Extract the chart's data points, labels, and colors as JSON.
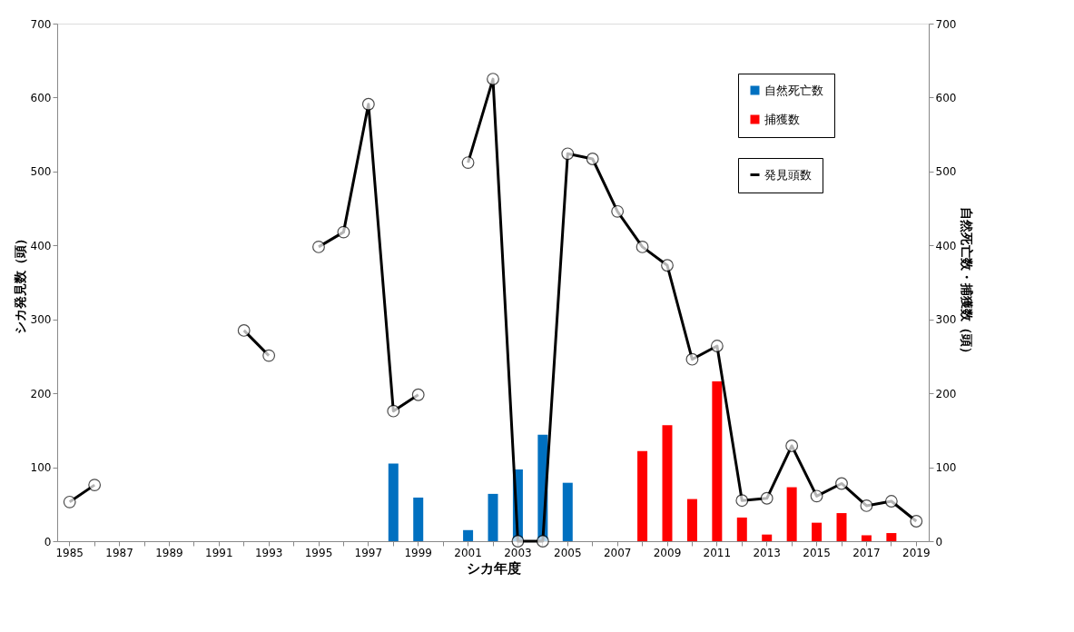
{
  "chart_data": {
    "type": "bar",
    "xlabel": "シカ年度",
    "ylabel": "シカ発見数（頭）",
    "y2label": "自然死亡数・捕獲数（頭）",
    "categories": [
      "1985",
      null,
      "1987",
      null,
      "1989",
      null,
      "1991",
      null,
      "1993",
      null,
      "1995",
      null,
      "1997",
      null,
      "1999",
      null,
      "2001",
      null,
      "2003",
      null,
      "2005",
      null,
      "2007",
      null,
      "2009",
      null,
      "2011",
      null,
      "2013",
      null,
      "2015",
      null,
      "2017",
      null,
      "2019"
    ],
    "series": [
      {
        "name": "自然死亡数",
        "axis": "y2",
        "color": "#0070c0",
        "values": [
          null,
          null,
          null,
          null,
          null,
          null,
          null,
          null,
          null,
          null,
          null,
          null,
          null,
          105,
          59,
          null,
          15,
          64,
          97,
          144,
          79,
          null,
          null,
          null,
          null,
          null,
          null,
          null,
          null,
          null,
          null,
          null,
          null,
          null,
          null
        ]
      },
      {
        "name": "捕獲数",
        "axis": "y2",
        "color": "#ff0000",
        "values": [
          null,
          null,
          null,
          null,
          null,
          null,
          null,
          null,
          null,
          null,
          null,
          null,
          null,
          null,
          null,
          null,
          null,
          null,
          null,
          null,
          null,
          null,
          null,
          122,
          157,
          57,
          216,
          32,
          9,
          73,
          25,
          38,
          8,
          11,
          null
        ]
      },
      {
        "name": "発見頭数",
        "type": "line",
        "color": "#000000",
        "marker": "circle",
        "values": [
          53,
          76,
          null,
          null,
          null,
          null,
          null,
          285,
          251,
          null,
          398,
          418,
          591,
          176,
          198,
          null,
          512,
          625,
          0,
          0,
          524,
          517,
          446,
          398,
          373,
          246,
          264,
          55,
          58,
          129,
          61,
          78,
          48,
          54,
          27
        ]
      }
    ],
    "ylim": [
      0,
      700
    ],
    "yticks": [
      0,
      100,
      200,
      300,
      400,
      500,
      600,
      700
    ],
    "y2lim": [
      0,
      700
    ],
    "y2ticks": [
      0,
      100,
      200,
      300,
      400,
      500,
      600,
      700
    ],
    "grid": false,
    "legend": "top right"
  }
}
